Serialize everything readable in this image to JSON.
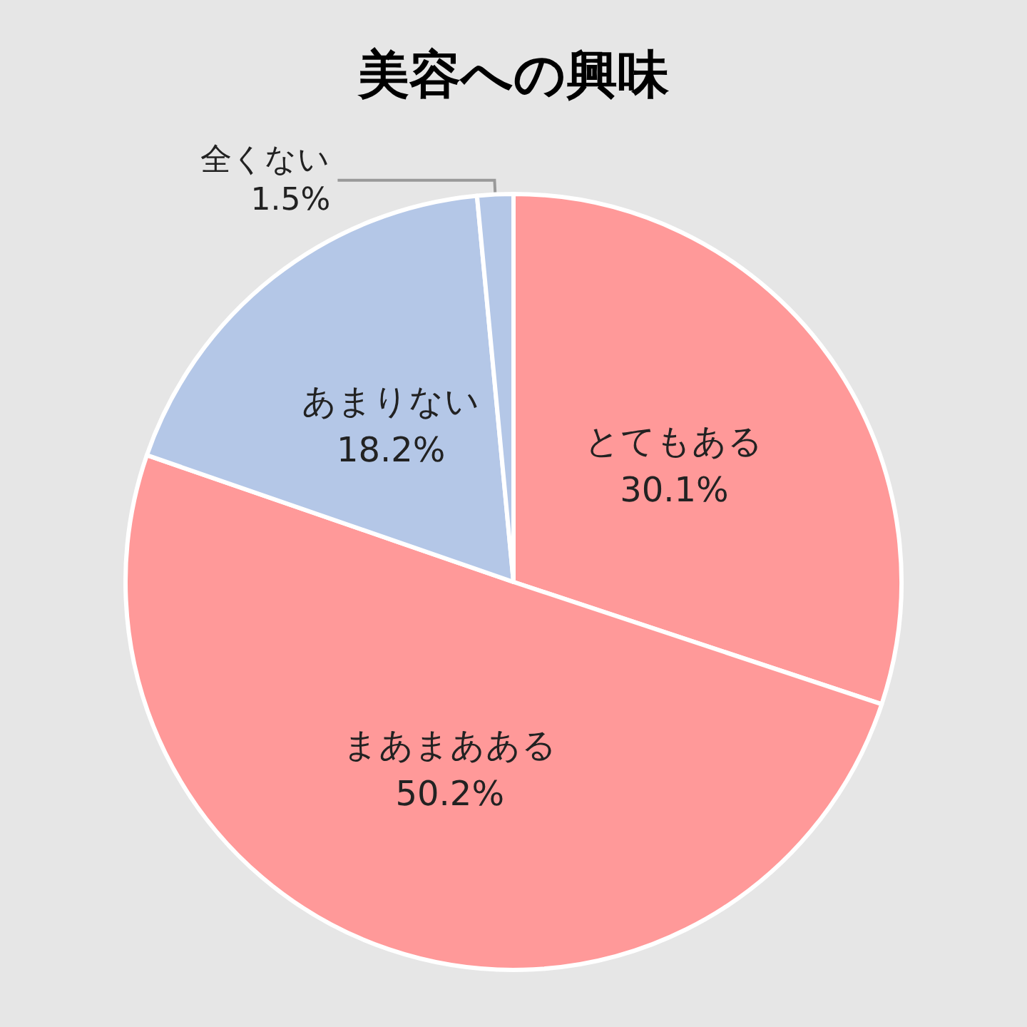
{
  "chart_data": {
    "type": "pie",
    "title": "美容への興味",
    "categories": [
      "とてもある",
      "まあまあある",
      "あまりない",
      "全くない"
    ],
    "values": [
      30.1,
      50.2,
      18.2,
      1.5
    ],
    "value_labels": [
      "30.1%",
      "50.2%",
      "18.2%",
      "1.5%"
    ],
    "colors": [
      "#ff9999",
      "#ff9999",
      "#b4c7e7",
      "#b4c7e7"
    ],
    "legend": false
  }
}
